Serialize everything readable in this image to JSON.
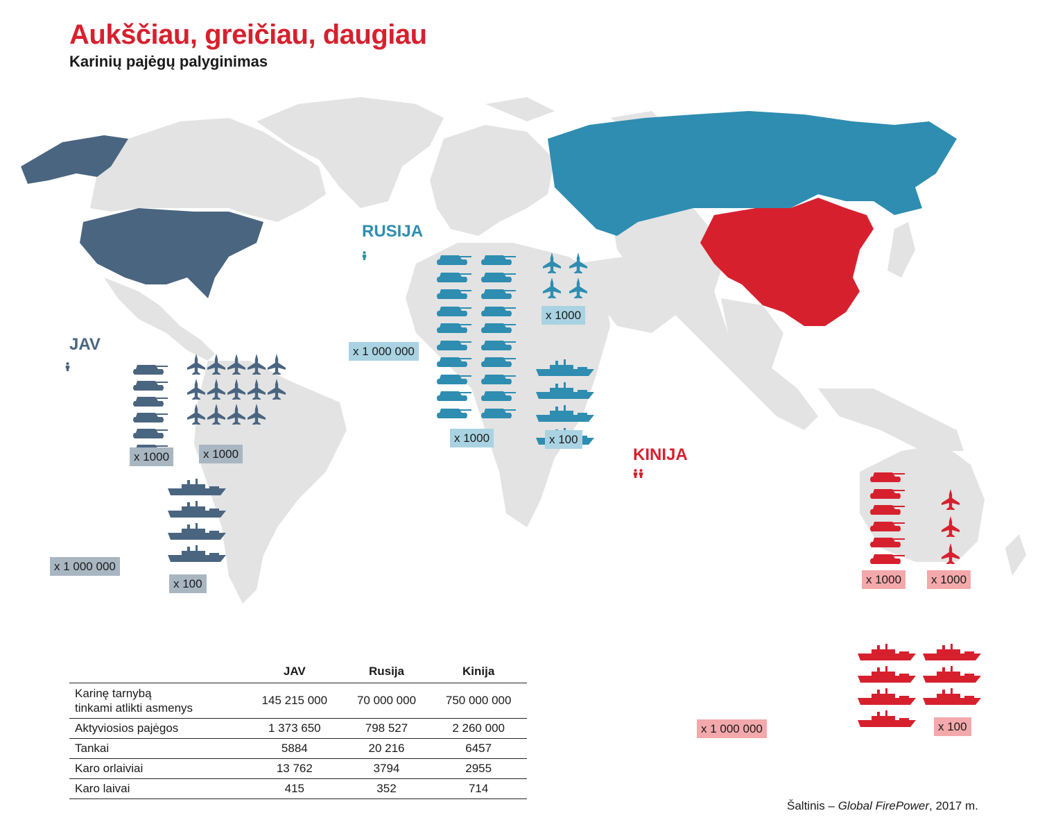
{
  "title": "Aukščiau, greičiau, daugiau",
  "subtitle": "Karinių pajėgų palyginimas",
  "colors": {
    "us": "#4a6580",
    "ru": "#2e8db1",
    "cn": "#d7202e",
    "land": "#e3e3e3"
  },
  "countries": {
    "us": {
      "label": "JAV",
      "mult_people": "x 1 000 000",
      "mult_tanks": "x 1000",
      "mult_planes": "x 1000",
      "mult_ships": "x 100"
    },
    "ru": {
      "label": "RUSIJA",
      "mult_people": "x 1 000 000",
      "mult_tanks": "x 1000",
      "mult_planes": "x 1000",
      "mult_ships": "x 100"
    },
    "cn": {
      "label": "KINIJA",
      "mult_people": "x 1 000 000",
      "mult_tanks": "x 1000",
      "mult_planes": "x 1000",
      "mult_ships": "x 100"
    }
  },
  "table": {
    "columns": [
      "",
      "JAV",
      "Rusija",
      "Kinija"
    ],
    "rows": [
      {
        "label": "Karinę tarnybą\ntinkami atlikti asmenys",
        "values": [
          "145 215 000",
          "70 000 000",
          "750 000 000"
        ]
      },
      {
        "label": "Aktyviosios pajėgos",
        "values": [
          "1 373 650",
          "798 527",
          "2 260 000"
        ]
      },
      {
        "label": "Tankai",
        "values": [
          "5884",
          "20 216",
          "6457"
        ]
      },
      {
        "label": "Karo orlaiviai",
        "values": [
          "13 762",
          "3794",
          "2955"
        ]
      },
      {
        "label": "Karo laivai",
        "values": [
          "415",
          "352",
          "714"
        ]
      }
    ]
  },
  "source_prefix": "Šaltinis – ",
  "source_italic": "Global FirePower",
  "source_suffix": ", 2017 m.",
  "chart_data": {
    "type": "table",
    "title": "Aukščiau, greičiau, daugiau",
    "subtitle": "Karinių pajėgų palyginimas",
    "categories": [
      "Karinę tarnybą tinkami atlikti asmenys",
      "Aktyviosios pajėgos",
      "Tankai",
      "Karo orlaiviai",
      "Karo laivai"
    ],
    "series": [
      {
        "name": "JAV",
        "values": [
          145215000,
          1373650,
          5884,
          13762,
          415
        ]
      },
      {
        "name": "Rusija",
        "values": [
          70000000,
          798527,
          20216,
          3794,
          352
        ]
      },
      {
        "name": "Kinija",
        "values": [
          750000000,
          2260000,
          6457,
          2955,
          714
        ]
      }
    ],
    "pictogram_units": {
      "people": 1000000,
      "tanks": 1000,
      "planes": 1000,
      "ships": 100
    }
  }
}
